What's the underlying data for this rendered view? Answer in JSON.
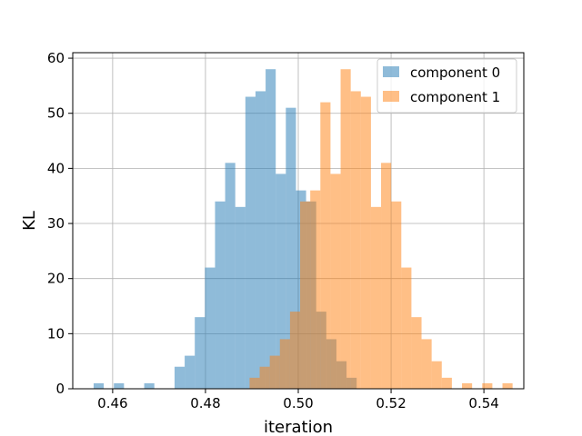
{
  "chart_data": {
    "type": "bar",
    "title": "",
    "xlabel": "iteration",
    "ylabel": "KL",
    "xlim": [
      0.4514,
      0.5486
    ],
    "ylim": [
      0,
      61
    ],
    "xticks": [
      0.46,
      0.48,
      0.5,
      0.52,
      0.54
    ],
    "xtick_labels": [
      "0.46",
      "0.48",
      "0.50",
      "0.52",
      "0.54"
    ],
    "yticks": [
      0,
      10,
      20,
      30,
      40,
      50,
      60
    ],
    "ytick_labels": [
      "0",
      "10",
      "20",
      "30",
      "40",
      "50",
      "60"
    ],
    "grid": true,
    "legend_position": "top-right",
    "series": [
      {
        "name": "component 0",
        "color": "#1f77b4",
        "opacity": 0.5,
        "bin_start": 0.4559,
        "bin_width": 0.00218,
        "counts": [
          1,
          0,
          1,
          0,
          0,
          1,
          0,
          0,
          4,
          6,
          13,
          22,
          34,
          41,
          33,
          53,
          54,
          58,
          39,
          51,
          36,
          34,
          14,
          9,
          5,
          2
        ]
      },
      {
        "name": "component 1",
        "color": "#ff7f0e",
        "opacity": 0.5,
        "bin_start": 0.4895,
        "bin_width": 0.00218,
        "counts": [
          2,
          4,
          6,
          9,
          14,
          34,
          36,
          52,
          39,
          58,
          54,
          53,
          33,
          41,
          34,
          22,
          13,
          9,
          5,
          2,
          0,
          1,
          0,
          1,
          0,
          1
        ]
      }
    ]
  }
}
